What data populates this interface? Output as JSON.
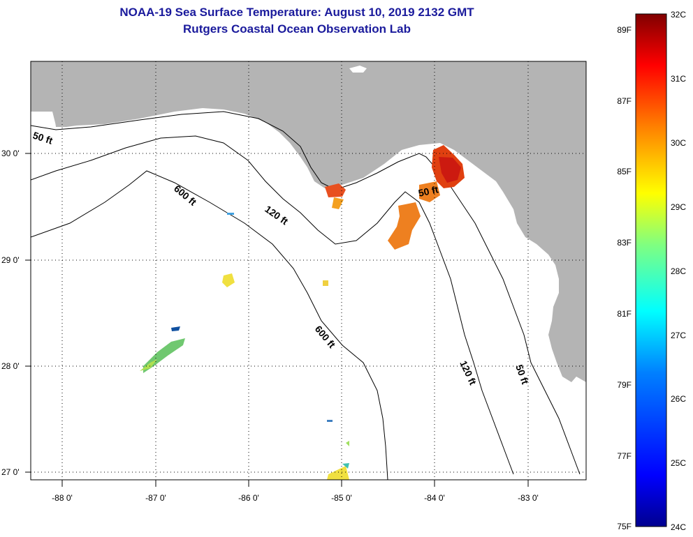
{
  "header": {
    "title": "NOAA-19 Sea Surface Temperature:  August 10, 2019 2132 GMT",
    "subtitle": "Rutgers Coastal Ocean Observation Lab"
  },
  "map": {
    "lat_labels": [
      "30 0'",
      "29 0'",
      "28 0'",
      "27 0'"
    ],
    "lon_labels": [
      "-88 0'",
      "-87 0'",
      "-86 0'",
      "-85 0'",
      "-84 0'",
      "-83 0'"
    ],
    "contour_labels": [
      "50 ft",
      "600 ft",
      "120 ft",
      "50 ft",
      "600 ft",
      "120 ft",
      "50 ft"
    ],
    "land_color": "#b4b4b4",
    "water_color": "#ffffff"
  },
  "colorbar": {
    "f_labels": [
      "89F",
      "87F",
      "85F",
      "83F",
      "81F",
      "79F",
      "77F",
      "75F"
    ],
    "c_labels": [
      "32C",
      "31C",
      "30C",
      "29C",
      "28C",
      "27C",
      "26C",
      "25C",
      "24C"
    ],
    "stops": [
      "#00008f",
      "#0000ff",
      "#0080ff",
      "#00ffff",
      "#80ff80",
      "#ffff00",
      "#ff8000",
      "#ff0000",
      "#800000"
    ]
  }
}
